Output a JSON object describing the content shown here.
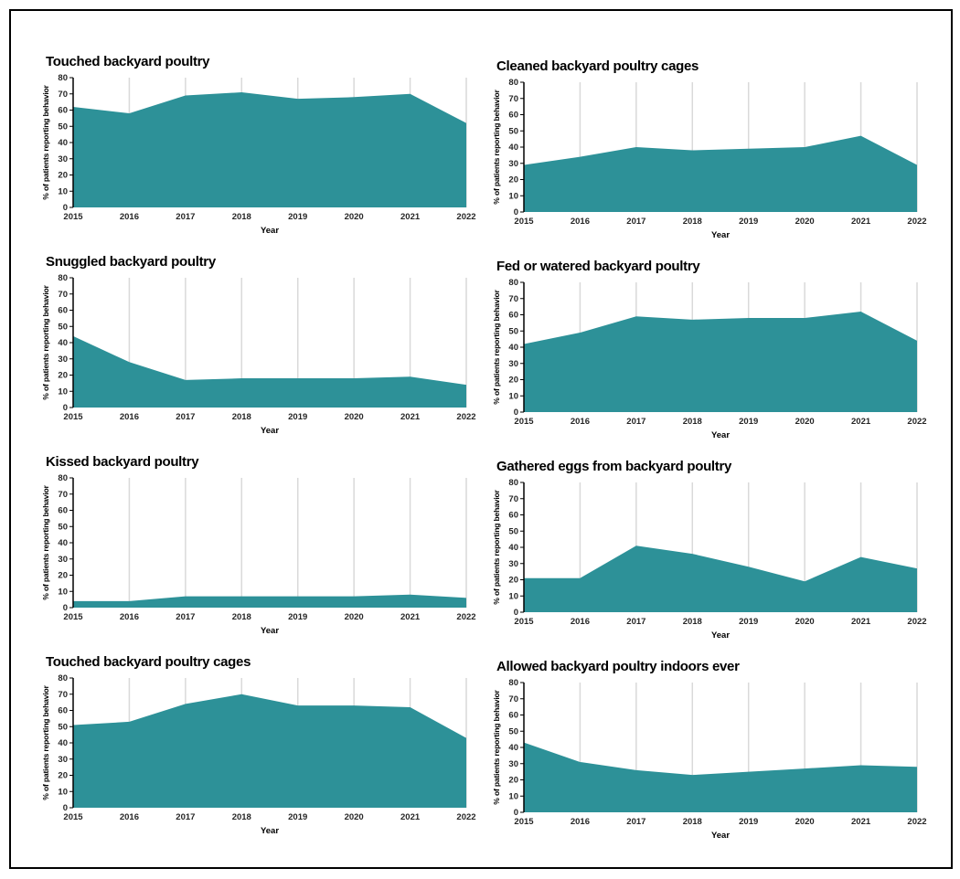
{
  "figure": {
    "background": "#ffffff",
    "border_color": "#000000",
    "fill_color": "#2d9198",
    "gridline_color": "#d9d9d9",
    "axis_color": "#000000",
    "tick_label_color": "#262626",
    "ylabel": "% of patients reporting behavior",
    "xlabel": "Year",
    "ylim": [
      0,
      80
    ],
    "yticks": [
      0,
      10,
      20,
      30,
      40,
      50,
      60,
      70,
      80
    ],
    "years": [
      "2015",
      "2016",
      "2017",
      "2018",
      "2019",
      "2020",
      "2021",
      "2022"
    ]
  },
  "chart_data": [
    {
      "type": "area",
      "title": "Touched backyard poultry",
      "x": [
        "2015",
        "2016",
        "2017",
        "2018",
        "2019",
        "2020",
        "2021",
        "2022"
      ],
      "values": [
        62,
        58,
        69,
        71,
        67,
        68,
        70,
        52
      ],
      "xlabel": "Year",
      "ylabel": "% of patients reporting behavior",
      "ylim": [
        0,
        80
      ],
      "grid": "vertical",
      "legend": "none"
    },
    {
      "type": "area",
      "title": "Cleaned backyard poultry cages",
      "x": [
        "2015",
        "2016",
        "2017",
        "2018",
        "2019",
        "2020",
        "2021",
        "2022"
      ],
      "values": [
        29,
        34,
        40,
        38,
        39,
        40,
        47,
        29
      ],
      "xlabel": "Year",
      "ylabel": "% of patients reporting behavior",
      "ylim": [
        0,
        80
      ],
      "grid": "vertical",
      "legend": "none"
    },
    {
      "type": "area",
      "title": "Snuggled backyard poultry",
      "x": [
        "2015",
        "2016",
        "2017",
        "2018",
        "2019",
        "2020",
        "2021",
        "2022"
      ],
      "values": [
        44,
        28,
        17,
        18,
        18,
        18,
        19,
        14
      ],
      "xlabel": "Year",
      "ylabel": "% of patients reporting behavior",
      "ylim": [
        0,
        80
      ],
      "grid": "vertical",
      "legend": "none"
    },
    {
      "type": "area",
      "title": "Fed or watered backyard poultry",
      "x": [
        "2015",
        "2016",
        "2017",
        "2018",
        "2019",
        "2020",
        "2021",
        "2022"
      ],
      "values": [
        42,
        49,
        59,
        57,
        58,
        58,
        62,
        44
      ],
      "xlabel": "Year",
      "ylabel": "% of patients reporting behavior",
      "ylim": [
        0,
        80
      ],
      "grid": "vertical",
      "legend": "none"
    },
    {
      "type": "area",
      "title": "Kissed backyard poultry",
      "x": [
        "2015",
        "2016",
        "2017",
        "2018",
        "2019",
        "2020",
        "2021",
        "2022"
      ],
      "values": [
        4,
        4,
        7,
        7,
        7,
        7,
        8,
        6
      ],
      "xlabel": "Year",
      "ylabel": "% of patients reporting behavior",
      "ylim": [
        0,
        80
      ],
      "grid": "vertical",
      "legend": "none"
    },
    {
      "type": "area",
      "title": "Gathered eggs from backyard poultry",
      "x": [
        "2015",
        "2016",
        "2017",
        "2018",
        "2019",
        "2020",
        "2021",
        "2022"
      ],
      "values": [
        21,
        21,
        41,
        36,
        28,
        19,
        34,
        27
      ],
      "xlabel": "Year",
      "ylabel": "% of patients reporting behavior",
      "ylim": [
        0,
        80
      ],
      "grid": "vertical",
      "legend": "none"
    },
    {
      "type": "area",
      "title": "Touched backyard poultry cages",
      "x": [
        "2015",
        "2016",
        "2017",
        "2018",
        "2019",
        "2020",
        "2021",
        "2022"
      ],
      "values": [
        51,
        53,
        64,
        70,
        63,
        63,
        62,
        43
      ],
      "xlabel": "Year",
      "ylabel": "% of patients reporting behavior",
      "ylim": [
        0,
        80
      ],
      "grid": "vertical",
      "legend": "none"
    },
    {
      "type": "area",
      "title": "Allowed backyard poultry indoors ever",
      "x": [
        "2015",
        "2016",
        "2017",
        "2018",
        "2019",
        "2020",
        "2021",
        "2022"
      ],
      "values": [
        43,
        31,
        26,
        23,
        25,
        27,
        29,
        28
      ],
      "xlabel": "Year",
      "ylabel": "% of patients reporting behavior",
      "ylim": [
        0,
        80
      ],
      "grid": "vertical",
      "legend": "none"
    }
  ]
}
